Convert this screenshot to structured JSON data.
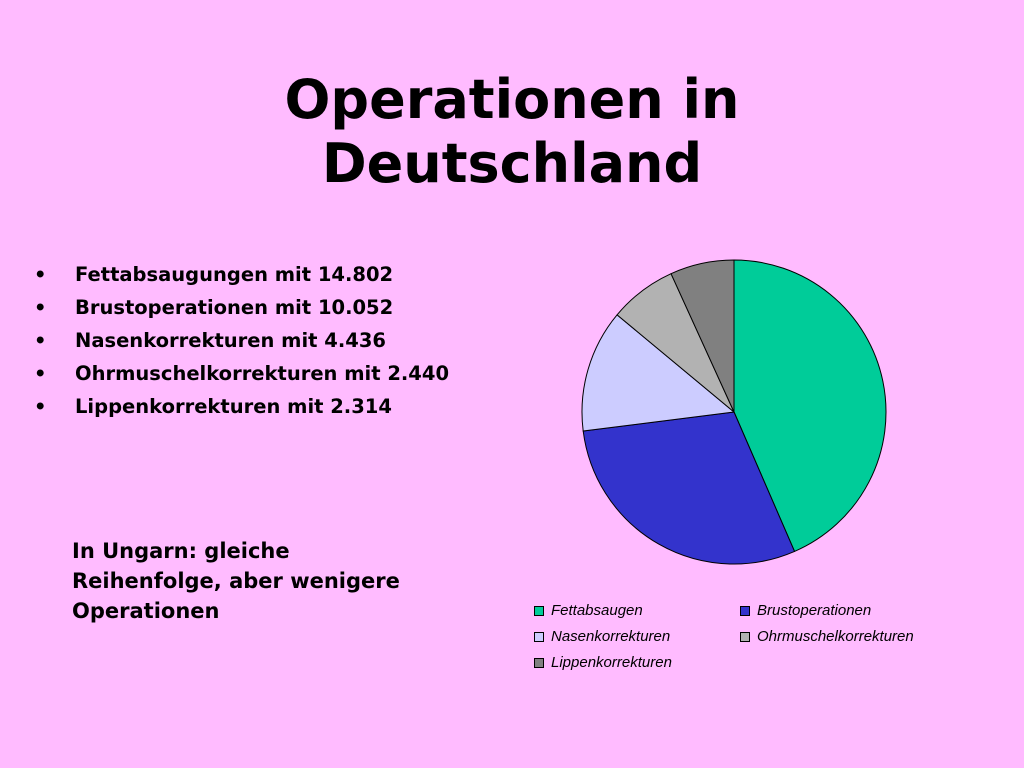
{
  "slide": {
    "title_line1": "Operationen in",
    "title_line2": "Deutschland",
    "bullets": [
      "Fettabsaugungen mit 14.802",
      "Brustoperationen mit 10.052",
      "Nasenkorrekturen mit 4.436",
      "Ohrmuschelkorrekturen mit 2.440",
      "Lippenkorrekturen mit 2.314"
    ],
    "bullet_symbol": "•",
    "note": "In Ungarn: gleiche Reihenfolge, aber wenigere Operationen"
  },
  "chart_data": {
    "type": "pie",
    "labels": [
      "Fettabsaugen",
      "Brustoperationen",
      "Nasenkorrekturen",
      "Ohrmuschelkorrekturen",
      "Lippenkorrekturen"
    ],
    "values": [
      14802,
      10052,
      4436,
      2440,
      2314
    ],
    "colors": [
      "#00cc99",
      "#3333cc",
      "#ccccff",
      "#b2b2b2",
      "#808080"
    ],
    "start_angle_deg": 0,
    "direction": "clockwise",
    "legend_position": "bottom",
    "title": ""
  }
}
